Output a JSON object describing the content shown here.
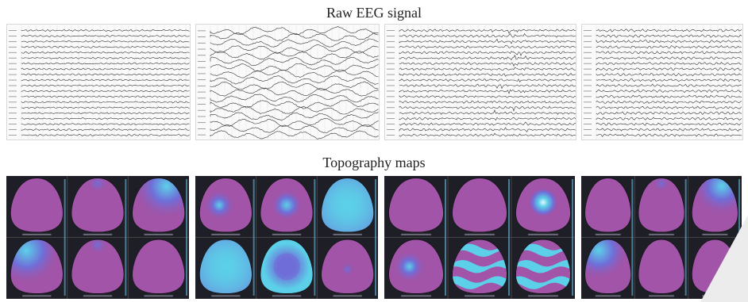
{
  "titles": {
    "raw": "Raw EEG signal",
    "topo": "Topography maps"
  },
  "colors": {
    "map_base": "#a154a8",
    "map_mid": "#6f6ed8",
    "map_high": "#5cd0e8",
    "panel_bg": "#1e1e26",
    "trace": "#333333"
  },
  "eeg_panels": [
    {
      "id": "eeg-1",
      "channels": 20,
      "amplitude": 0.6,
      "style": "calm"
    },
    {
      "id": "eeg-2",
      "channels": 18,
      "amplitude": 3.2,
      "style": "slow-wave"
    },
    {
      "id": "eeg-3",
      "channels": 20,
      "amplitude": 0.8,
      "style": "calm-spikes"
    },
    {
      "id": "eeg-4",
      "channels": 20,
      "amplitude": 0.9,
      "style": "calm"
    }
  ],
  "topo_panels": [
    {
      "id": "topo-1",
      "maps": [
        {
          "pattern": "uniform"
        },
        {
          "pattern": "top-blob-small"
        },
        {
          "pattern": "top-right-wash"
        },
        {
          "pattern": "left-wash"
        },
        {
          "pattern": "top-blob-small"
        },
        {
          "pattern": "uniform"
        }
      ]
    },
    {
      "id": "topo-2",
      "maps": [
        {
          "pattern": "left-blob"
        },
        {
          "pattern": "center-blob"
        },
        {
          "pattern": "full-cyan"
        },
        {
          "pattern": "full-cyan"
        },
        {
          "pattern": "center-blob-large"
        },
        {
          "pattern": "center-blob-small"
        }
      ]
    },
    {
      "id": "topo-3",
      "maps": [
        {
          "pattern": "uniform"
        },
        {
          "pattern": "uniform"
        },
        {
          "pattern": "center-bright"
        },
        {
          "pattern": "left-blob"
        },
        {
          "pattern": "horizontal-bands"
        },
        {
          "pattern": "horizontal-bands"
        }
      ]
    },
    {
      "id": "topo-4",
      "maps": [
        {
          "pattern": "uniform"
        },
        {
          "pattern": "top-blob-small"
        },
        {
          "pattern": "top-right-wash"
        },
        {
          "pattern": "left-wash"
        },
        {
          "pattern": "uniform"
        },
        {
          "pattern": "uniform"
        }
      ]
    }
  ]
}
